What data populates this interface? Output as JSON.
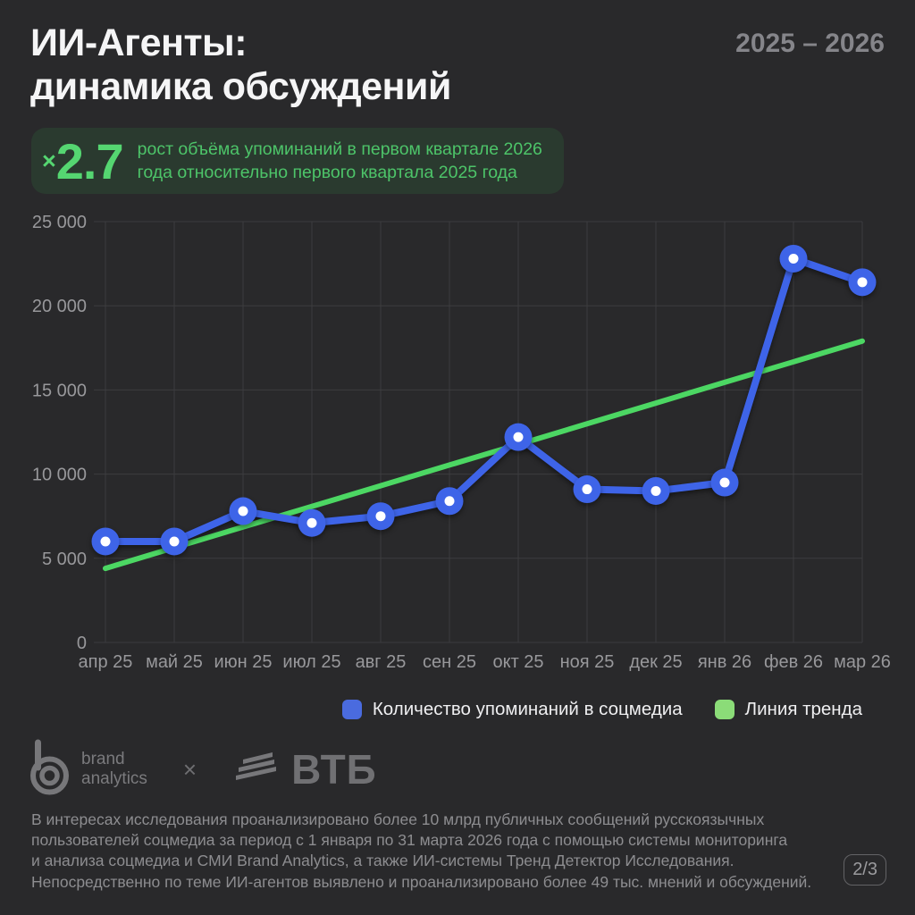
{
  "header": {
    "title_line1": "ИИ-Агенты:",
    "title_line2": "динамика обсуждений",
    "period": "2025 – 2026"
  },
  "highlight": {
    "multiplier_sign": "×",
    "value": "2.7",
    "description_line1": "рост объёма упоминаний в первом квартале 2026",
    "description_line2": "года относительно первого квартала 2025 года"
  },
  "chart_data": {
    "type": "line",
    "title": "ИИ-Агенты: динамика обсуждений",
    "categories": [
      "апр 25",
      "май 25",
      "июн 25",
      "июл 25",
      "авг 25",
      "сен 25",
      "окт 25",
      "ноя 25",
      "дек 25",
      "янв 26",
      "фев 26",
      "мар 26"
    ],
    "series": [
      {
        "name": "Количество упоминаний в соцмедиа",
        "role": "main",
        "color": "#3E64E8",
        "values": [
          6000,
          6000,
          7800,
          7100,
          7500,
          8400,
          12200,
          9100,
          9000,
          9500,
          22800,
          21400
        ]
      },
      {
        "name": "Линия тренда",
        "role": "trend",
        "color": "#4CD763",
        "values": [
          4400,
          5630,
          6860,
          8080,
          9310,
          10540,
          11760,
          12990,
          14220,
          15450,
          16670,
          17900
        ]
      }
    ],
    "ylim": [
      0,
      25000
    ],
    "yticks": [
      0,
      5000,
      10000,
      15000,
      20000,
      25000
    ],
    "ytick_labels": [
      "0",
      "5 000",
      "10 000",
      "15 000",
      "20 000",
      "25 000"
    ],
    "grid": true,
    "legend_position": "bottom"
  },
  "legend": {
    "items": [
      {
        "label": "Количество упоминаний в соцмедиа",
        "color": "#4A6BDF"
      },
      {
        "label": "Линия тренда",
        "color": "#8BDC78"
      }
    ]
  },
  "footer": {
    "brand1_line1": "brand",
    "brand1_line2": "analytics",
    "separator": "×",
    "brand2": "ВТБ",
    "lines": [
      "В интересах исследования проанализировано более 10 млрд публичных сообщений русскоязычных",
      "пользователей соцмедиа за период с 1 января по 31 марта 2026 года с помощью системы мониторинга",
      "и анализа соцмедиа и СМИ Brand Analytics, а также ИИ-системы Тренд Детектор Исследования.",
      "Непосредственно по теме ИИ-агентов выявлено и проанализировано более 49 тыс. мнений и обсуждений."
    ],
    "page": "2/3"
  },
  "colors": {
    "background": "#29292B",
    "accent_green": "#55D671",
    "trend_green": "#4CD763",
    "series_blue": "#3E64E8",
    "badge_background": "#2A3A2F"
  }
}
